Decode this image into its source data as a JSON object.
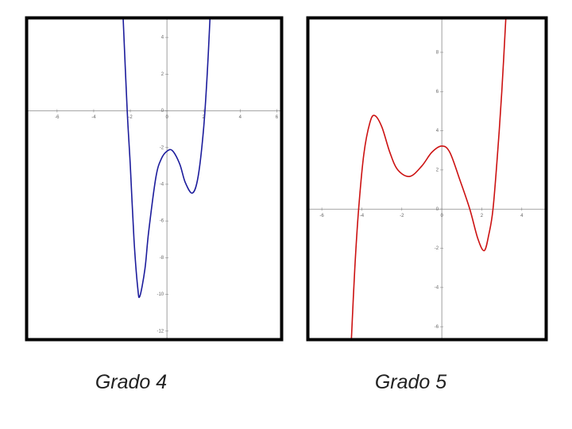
{
  "chart_data": [
    {
      "type": "line",
      "title": "Grado 4",
      "x": [
        -2.39,
        -2.17,
        -2.0,
        -1.8,
        -1.6,
        -1.48,
        -1.2,
        -1.0,
        -0.6,
        -0.3,
        0,
        0.3,
        0.7,
        1.0,
        1.39,
        1.7,
        2.0,
        2.2,
        2.35
      ],
      "series": [
        {
          "color": "#1c1c9c",
          "values": [
            5.0,
            0,
            -3,
            -7,
            -9.6,
            -10.1,
            -8.6,
            -6.6,
            -3.6,
            -2.6,
            -2.2,
            -2.17,
            -2.9,
            -3.9,
            -4.48,
            -3.6,
            -1.0,
            2.0,
            5.0
          ]
        }
      ],
      "xlim": [
        -7.6,
        6.2
      ],
      "ylim": [
        -12.4,
        5.0
      ],
      "xticks": [
        -6,
        -4,
        -2,
        0,
        2,
        4,
        6
      ],
      "yticks": [
        4,
        2,
        0,
        -2,
        -4,
        -6,
        -8,
        -10,
        -12
      ],
      "grid": false
    },
    {
      "type": "line",
      "title": "Grado 5",
      "x": [
        -4.52,
        -4.35,
        -4.16,
        -3.9,
        -3.6,
        -3.36,
        -3.0,
        -2.6,
        -2.2,
        -1.6,
        -1.0,
        -0.5,
        0,
        0.4,
        0.9,
        1.4,
        1.8,
        2.12,
        2.35,
        2.56,
        2.8,
        3.0,
        3.2
      ],
      "series": [
        {
          "color": "#cc1111",
          "values": [
            -6.6,
            -3,
            0,
            2.8,
            4.4,
            4.78,
            4.2,
            2.9,
            2.0,
            1.67,
            2.2,
            2.9,
            3.22,
            2.9,
            1.5,
            0,
            -1.5,
            -2.12,
            -1.3,
            0,
            3,
            6,
            9.7
          ]
        }
      ],
      "xlim": [
        -6.64,
        5.16
      ],
      "ylim": [
        -6.6,
        9.7
      ],
      "xticks": [
        -6,
        -4,
        -2,
        0,
        2,
        4
      ],
      "yticks": [
        8,
        6,
        4,
        2,
        0,
        -2,
        -4,
        -6
      ],
      "grid": false
    }
  ]
}
